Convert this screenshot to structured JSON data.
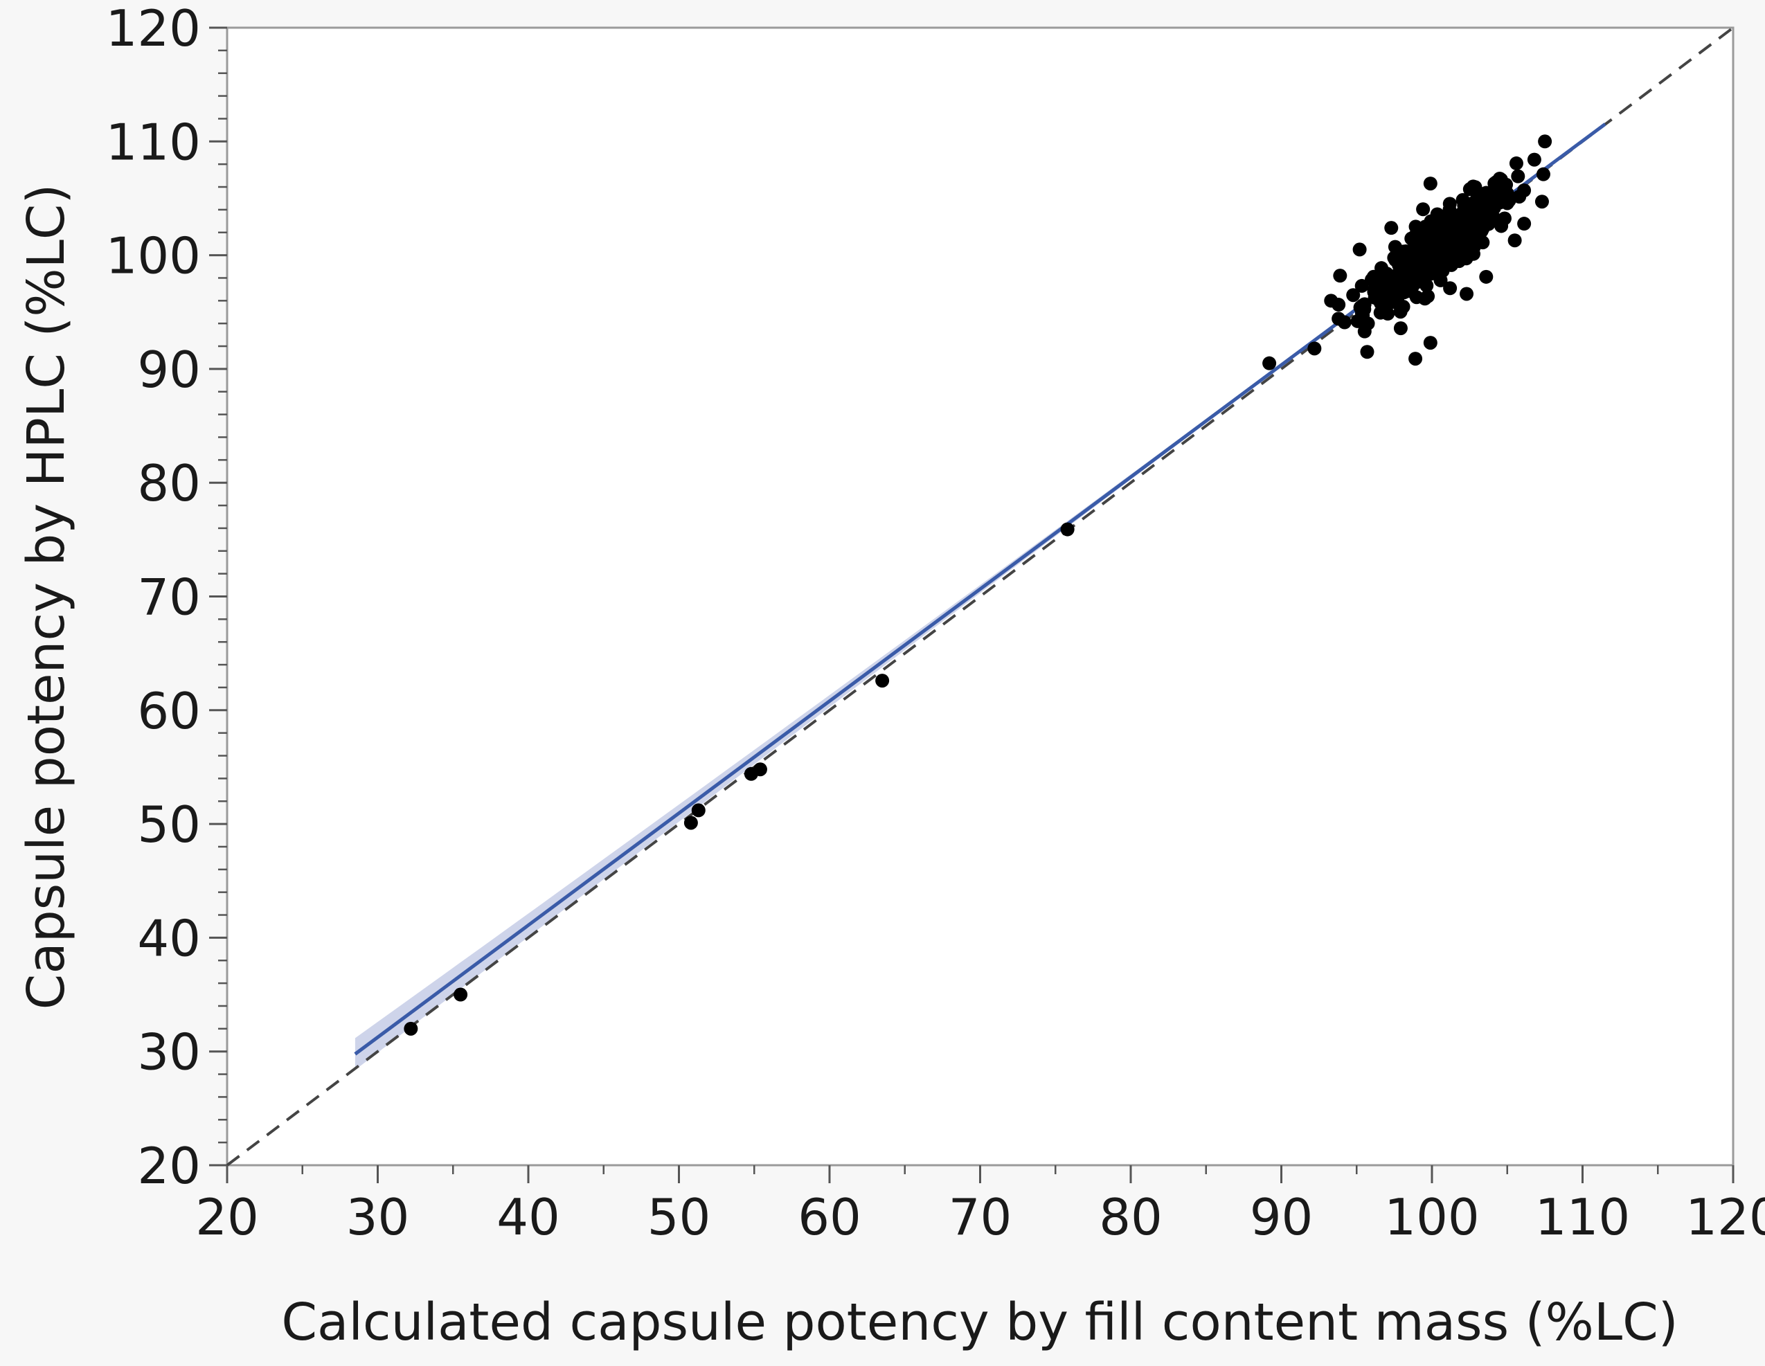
{
  "chart_data": {
    "type": "scatter",
    "xlabel": "Calculated capsule potency by fill content mass (%LC)",
    "ylabel": "Capsule potency by HPLC (%LC)",
    "xlim": [
      20,
      120
    ],
    "ylim": [
      20,
      120
    ],
    "xticks": [
      20,
      30,
      40,
      50,
      60,
      70,
      80,
      90,
      100,
      110,
      120
    ],
    "yticks": [
      20,
      30,
      40,
      50,
      60,
      70,
      80,
      90,
      100,
      110,
      120
    ],
    "x_tick_labels": [
      "20",
      "30",
      "40",
      "50",
      "60",
      "70",
      "80",
      "90",
      "100",
      "110",
      "120"
    ],
    "y_tick_labels": [
      "20",
      "30",
      "40",
      "50",
      "60",
      "70",
      "80",
      "90",
      "100",
      "110",
      "120"
    ],
    "grid": false,
    "identity_line": {
      "style": "dashed",
      "color": "#444444",
      "from": [
        20,
        20
      ],
      "to": [
        120,
        120
      ]
    },
    "fit_line": {
      "color": "#3a5ba8",
      "band_color": "#c5cde6",
      "x_range": [
        28.5,
        111.5
      ],
      "slope": 0.985,
      "intercept": 1.7,
      "band_halfwidth_at_ends": 1.4
    },
    "points_color": "#000000",
    "outlier_points": [
      {
        "x": 32.2,
        "y": 32.0
      },
      {
        "x": 35.5,
        "y": 35.0
      },
      {
        "x": 50.8,
        "y": 50.1
      },
      {
        "x": 51.3,
        "y": 51.2
      },
      {
        "x": 54.8,
        "y": 54.4
      },
      {
        "x": 55.4,
        "y": 54.8
      },
      {
        "x": 63.5,
        "y": 62.6
      },
      {
        "x": 75.8,
        "y": 75.9
      },
      {
        "x": 89.2,
        "y": 90.5
      },
      {
        "x": 92.2,
        "y": 91.8
      },
      {
        "x": 95.7,
        "y": 91.5
      },
      {
        "x": 98.9,
        "y": 90.9
      },
      {
        "x": 99.9,
        "y": 92.3
      },
      {
        "x": 93.3,
        "y": 96.0
      },
      {
        "x": 93.9,
        "y": 98.2
      },
      {
        "x": 95.2,
        "y": 100.5
      },
      {
        "x": 99.9,
        "y": 106.3
      },
      {
        "x": 101.2,
        "y": 97.1
      },
      {
        "x": 102.3,
        "y": 96.6
      },
      {
        "x": 106.8,
        "y": 108.4
      },
      {
        "x": 107.5,
        "y": 110.0
      },
      {
        "x": 105.5,
        "y": 101.3
      },
      {
        "x": 103.6,
        "y": 98.1
      },
      {
        "x": 94.2,
        "y": 94.1
      },
      {
        "x": 97.3,
        "y": 102.4
      },
      {
        "x": 104.3,
        "y": 105.9
      }
    ],
    "cluster": {
      "count": 400,
      "x_center": 100.5,
      "x_sd": 2.5,
      "residual_sd": 1.35,
      "x_min": 93.8,
      "x_max": 107.4
    }
  }
}
